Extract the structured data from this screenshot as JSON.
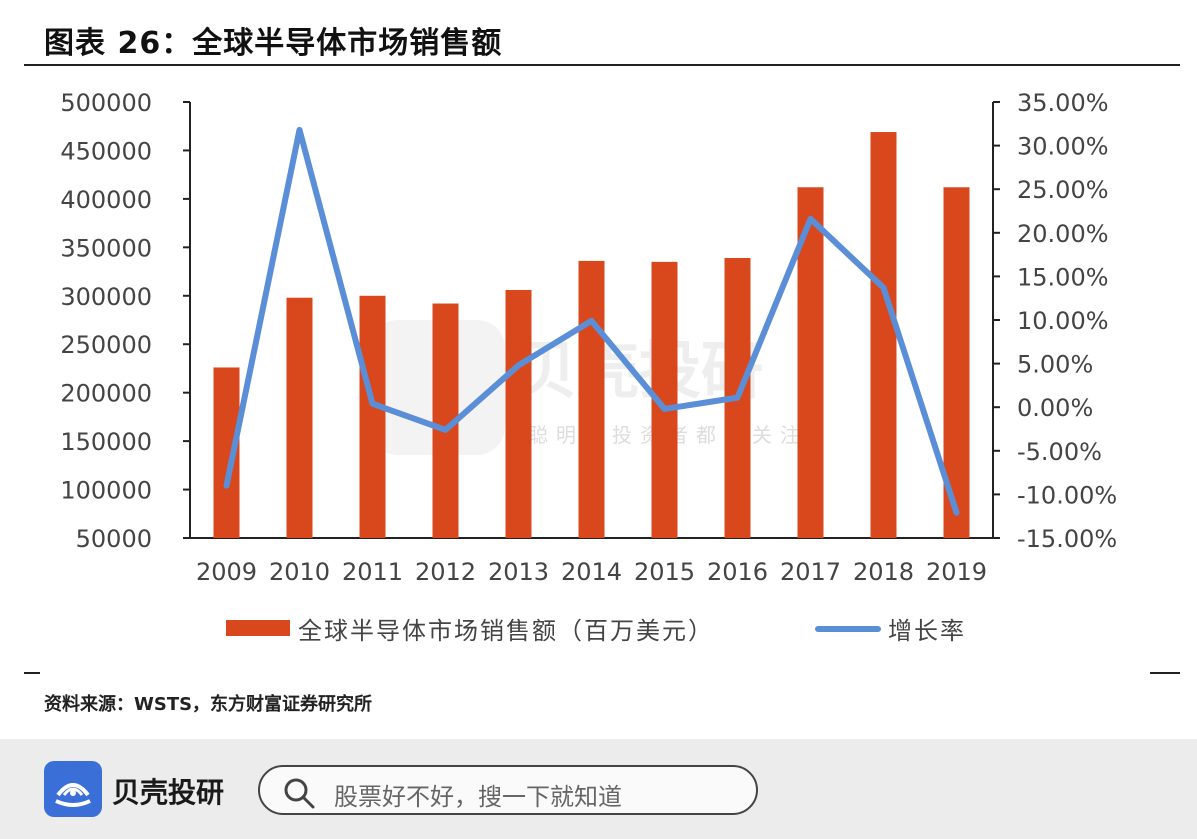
{
  "title": "图表 26：全球半导体市场销售额",
  "source": "资料来源：WSTS，东方财富证券研究所",
  "footer": {
    "brand": "贝壳投研",
    "search_placeholder": "股票好不好，搜一下就知道"
  },
  "watermark": {
    "brand": "贝壳投研",
    "slogan": "聪明的投资者都在关注"
  },
  "colors": {
    "bar": "#d9481c",
    "line": "#5a8fd8",
    "brand": "#3a6fd8"
  },
  "chart_data": {
    "type": "bar",
    "categories": [
      "2009",
      "2010",
      "2011",
      "2012",
      "2013",
      "2014",
      "2015",
      "2016",
      "2017",
      "2018",
      "2019"
    ],
    "series": [
      {
        "name": "全球半导体市场销售额（百万美元）",
        "type": "bar",
        "axis": "left",
        "values": [
          226000,
          298000,
          300000,
          292000,
          306000,
          336000,
          335000,
          339000,
          412000,
          469000,
          412000
        ]
      },
      {
        "name": "增长率",
        "type": "line",
        "axis": "right",
        "values": [
          -9.0,
          31.8,
          0.4,
          -2.6,
          4.8,
          9.9,
          -0.2,
          1.1,
          21.6,
          13.7,
          -12.1
        ]
      }
    ],
    "left_axis": {
      "ylim": [
        50000,
        500000
      ],
      "ticks": [
        "500000",
        "450000",
        "400000",
        "350000",
        "300000",
        "250000",
        "200000",
        "150000",
        "100000",
        "50000"
      ]
    },
    "right_axis": {
      "ylim": [
        -15,
        35
      ],
      "ticks": [
        "35.00%",
        "30.00%",
        "25.00%",
        "20.00%",
        "15.00%",
        "10.00%",
        "5.00%",
        "0.00%",
        "-5.00%",
        "-10.00%",
        "-15.00%"
      ]
    },
    "legend_position": "bottom",
    "grid": false
  }
}
